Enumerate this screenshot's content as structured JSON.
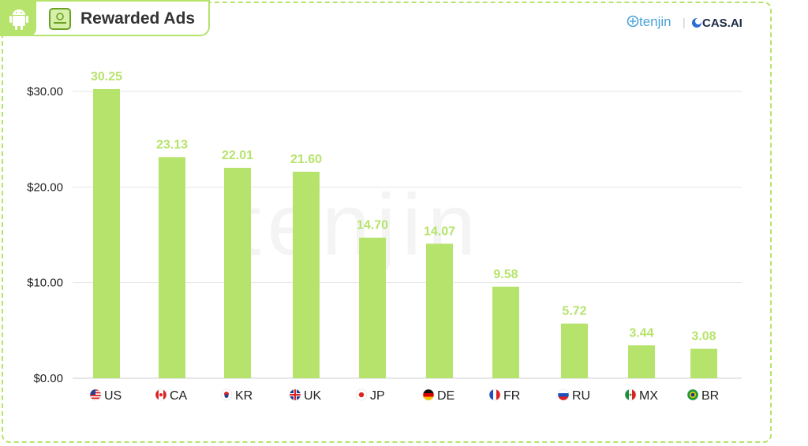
{
  "header": {
    "title": "Rewarded Ads",
    "platform_icon": "android-icon",
    "ads_icon": "rewarded-ads-icon"
  },
  "brands": {
    "tenjin": "tenjin",
    "separator": "|",
    "cas": "CAS.AI"
  },
  "watermark": "tenjin",
  "colors": {
    "bar": "#b6e36c",
    "accent": "#b6e36c",
    "grid": "#e6e6e6"
  },
  "chart_data": {
    "type": "bar",
    "categories": [
      "US",
      "CA",
      "KR",
      "UK",
      "JP",
      "DE",
      "FR",
      "RU",
      "MX",
      "BR"
    ],
    "category_icons": [
      "us-flag-icon",
      "ca-flag-icon",
      "kr-flag-icon",
      "uk-flag-icon",
      "jp-flag-icon",
      "de-flag-icon",
      "fr-flag-icon",
      "ru-flag-icon",
      "mx-flag-icon",
      "br-flag-icon"
    ],
    "values": [
      30.25,
      23.13,
      22.01,
      21.6,
      14.7,
      14.07,
      9.58,
      5.72,
      3.44,
      3.08
    ],
    "value_labels": [
      "30.25",
      "23.13",
      "22.01",
      "21.60",
      "14.70",
      "14.07",
      "9.58",
      "5.72",
      "3.44",
      "3.08"
    ],
    "yticks": [
      0,
      10,
      20,
      30
    ],
    "ytick_labels": [
      "$0.00",
      "$10.00",
      "$20.00",
      "$30.00"
    ],
    "ylim": [
      0,
      30
    ],
    "grid": true,
    "title": "",
    "xlabel": "",
    "ylabel": ""
  }
}
